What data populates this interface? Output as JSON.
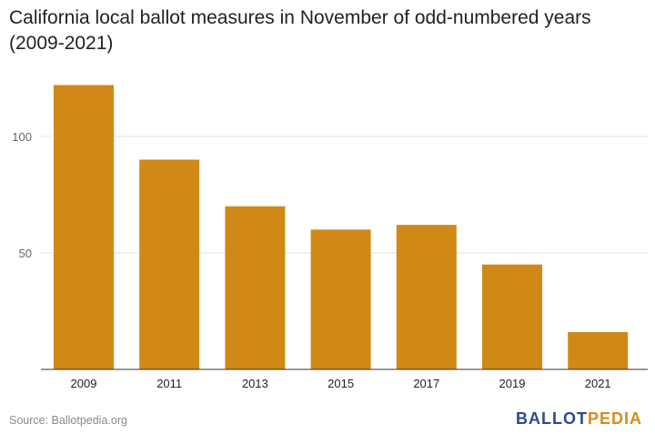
{
  "chart_data": {
    "type": "bar",
    "title": "California local ballot measures in November of odd-numbered years (2009-2021)",
    "categories": [
      "2009",
      "2011",
      "2013",
      "2015",
      "2017",
      "2019",
      "2021"
    ],
    "values": [
      122,
      90,
      70,
      60,
      62,
      45,
      16
    ],
    "ylim": [
      0,
      130
    ],
    "yticks": [
      50,
      100
    ],
    "grid": true,
    "bar_color": "#d08917"
  },
  "footer": {
    "source": "Source: Ballotpedia.org",
    "logo_part1": "BALLOT",
    "logo_part2": "PEDIA"
  }
}
